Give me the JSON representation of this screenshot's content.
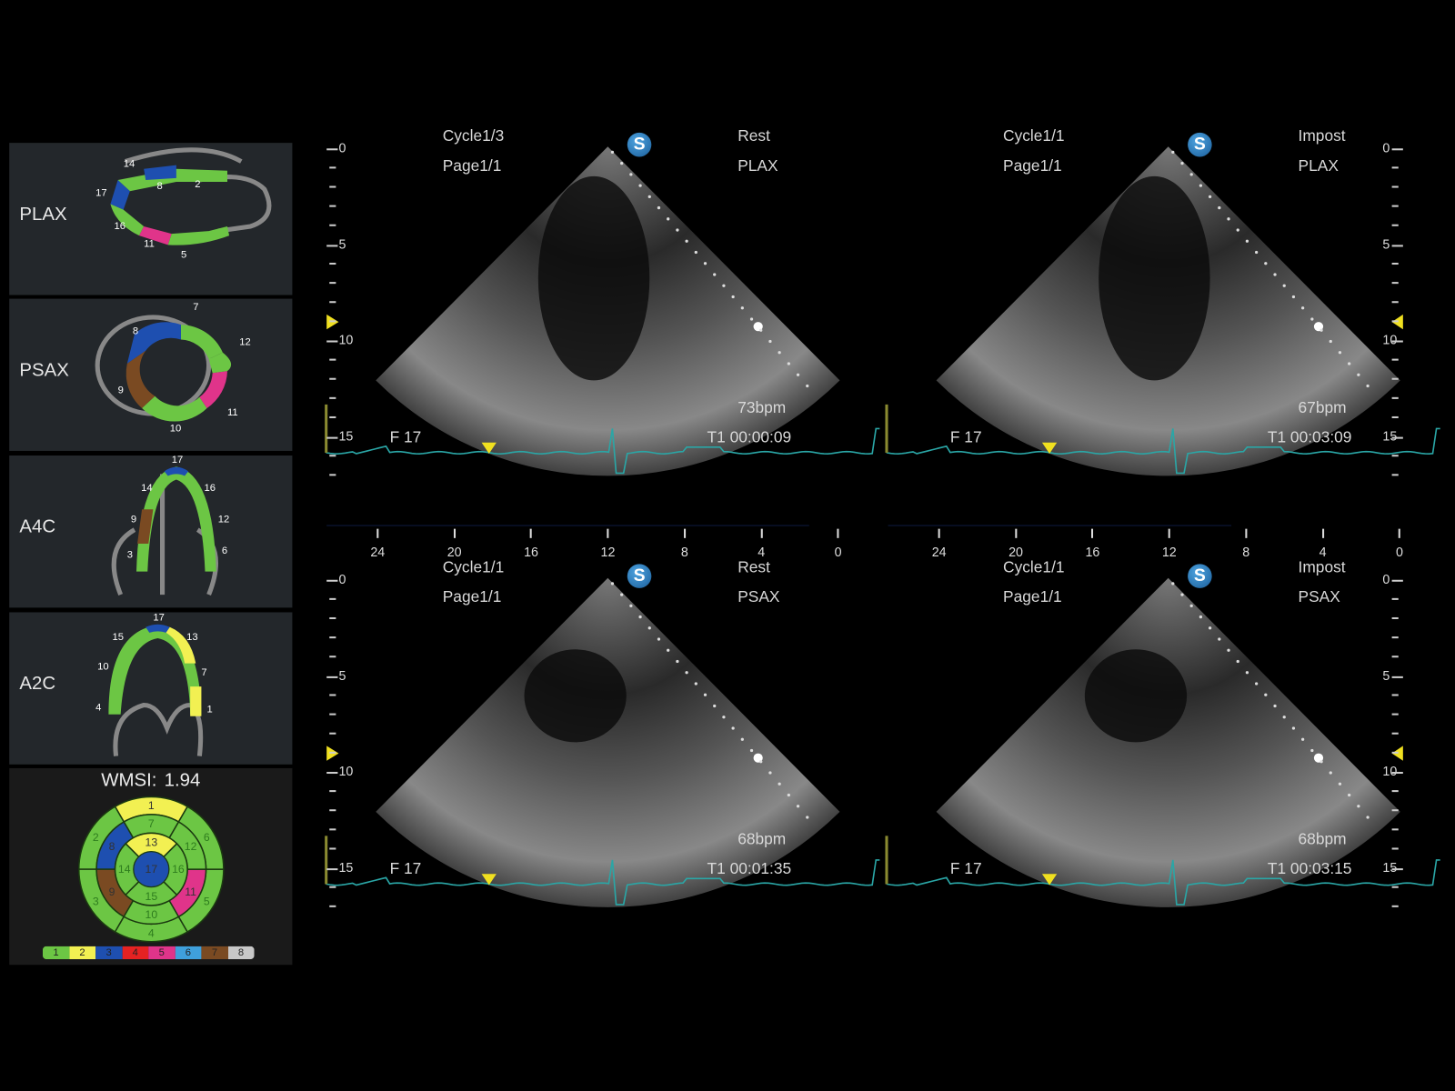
{
  "left_panel": {
    "views": [
      {
        "label": "PLAX",
        "segments": [
          "14",
          "8",
          "2",
          "17",
          "16",
          "11",
          "5"
        ]
      },
      {
        "label": "PSAX",
        "segments": [
          "7",
          "8",
          "12",
          "9",
          "11",
          "10"
        ]
      },
      {
        "label": "A4C",
        "segments": [
          "17",
          "14",
          "16",
          "9",
          "12",
          "3",
          "6"
        ]
      },
      {
        "label": "A2C",
        "segments": [
          "17",
          "15",
          "13",
          "10",
          "7",
          "4",
          "1"
        ]
      }
    ],
    "wmsi_label": "WMSI:",
    "wmsi_value": "1.94",
    "bullseye": {
      "segment_scores": {
        "1": 2,
        "2": 1,
        "3": 1,
        "4": 1,
        "5": 1,
        "6": 1,
        "7": 1,
        "8": 3,
        "9": 7,
        "10": 1,
        "11": 5,
        "12": 1,
        "13": 2,
        "14": 1,
        "15": 1,
        "16": 1,
        "17": 3
      }
    },
    "score_legend": [
      {
        "score": "1",
        "color": "#6cc644"
      },
      {
        "score": "2",
        "color": "#f2f052"
      },
      {
        "score": "3",
        "color": "#1e4fb0"
      },
      {
        "score": "4",
        "color": "#e52222"
      },
      {
        "score": "5",
        "color": "#e0348a"
      },
      {
        "score": "6",
        "color": "#3fa0dc"
      },
      {
        "score": "7",
        "color": "#7a4a22"
      },
      {
        "score": "8",
        "color": "#c8c8c8"
      }
    ]
  },
  "viewports": [
    {
      "cycle": "Cycle1/3",
      "page": "Page1/1",
      "stage": "Rest",
      "view": "PLAX",
      "bpm": "73bpm",
      "frame": "F 17",
      "time": "T1 00:00:09",
      "s_icon": "S"
    },
    {
      "cycle": "Cycle1/1",
      "page": "Page1/1",
      "stage": "Impost",
      "view": "PLAX",
      "bpm": "67bpm",
      "frame": "F 17",
      "time": "T1 00:03:09",
      "s_icon": "S"
    },
    {
      "cycle": "Cycle1/1",
      "page": "Page1/1",
      "stage": "Rest",
      "view": "PSAX",
      "bpm": "68bpm",
      "frame": "F 17",
      "time": "T1 00:01:35",
      "s_icon": "S"
    },
    {
      "cycle": "Cycle1/1",
      "page": "Page1/1",
      "stage": "Impost",
      "view": "PSAX",
      "bpm": "68bpm",
      "frame": "F 17",
      "time": "T1 00:03:15",
      "s_icon": "S"
    }
  ],
  "depth_scale": [
    "0",
    "5",
    "10",
    "15"
  ],
  "time_axis": [
    "24",
    "20",
    "16",
    "12",
    "8",
    "4",
    "0"
  ],
  "colors": {
    "ecg": "#2aa6a6",
    "marker": "#f0e020",
    "s_icon": "#2a7cc4"
  }
}
